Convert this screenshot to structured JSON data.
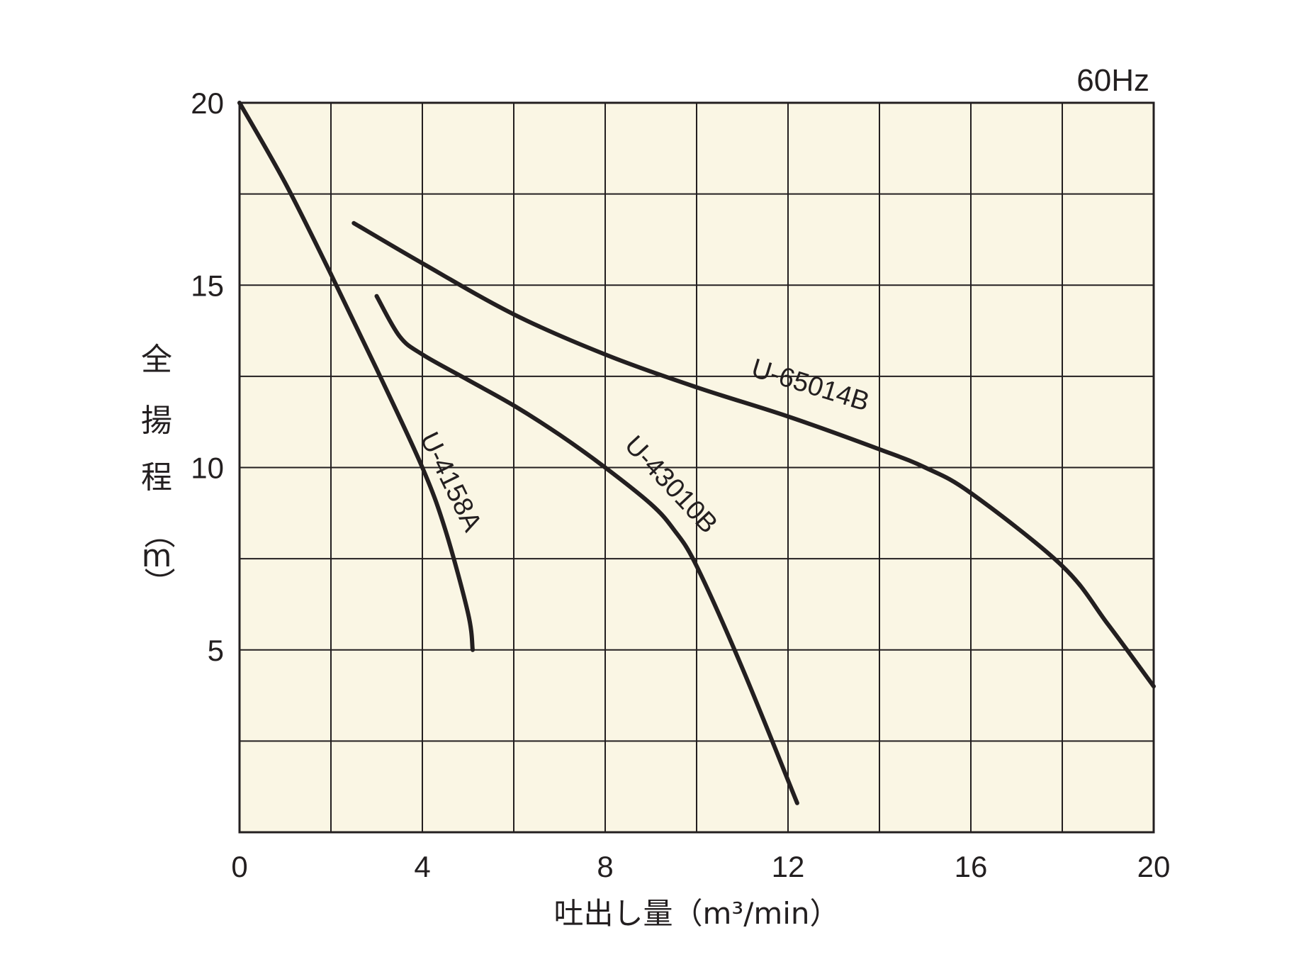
{
  "chart_data": {
    "type": "line",
    "title": "",
    "annotation": "60Hz",
    "xlabel": "吐出し量（m³/min）",
    "ylabel_chars": [
      "全",
      "揚",
      "程",
      "（",
      "m",
      "）"
    ],
    "xlim": [
      0,
      20
    ],
    "ylim": [
      0,
      20
    ],
    "x_ticks": [
      "0",
      "4",
      "8",
      "12",
      "16",
      "20"
    ],
    "y_ticks": [
      "5",
      "10",
      "15",
      "20"
    ],
    "grid": true,
    "colors": {
      "background": "#faf6e4",
      "line": "#231f20",
      "grid": "#231f20"
    },
    "series": [
      {
        "name": "U-4158A",
        "x": [
          0,
          1,
          2,
          3,
          4,
          4.5,
          5,
          5.1
        ],
        "y": [
          20,
          17.8,
          15.3,
          12.7,
          10,
          8.3,
          6,
          5
        ]
      },
      {
        "name": "U-43010B",
        "x": [
          3,
          3.5,
          4,
          5,
          6,
          7,
          8,
          9,
          9.5,
          10,
          11,
          12.2
        ],
        "y": [
          14.7,
          13.6,
          13.1,
          12.4,
          11.7,
          10.9,
          10,
          9,
          8.3,
          7.3,
          4.5,
          0.8
        ]
      },
      {
        "name": "U-65014B",
        "x": [
          2.5,
          4,
          6,
          8,
          10,
          12,
          14,
          15,
          16,
          18,
          19,
          20
        ],
        "y": [
          16.7,
          15.6,
          14.2,
          13.1,
          12.2,
          11.4,
          10.5,
          10,
          9.3,
          7.3,
          5.7,
          4
        ]
      }
    ]
  }
}
